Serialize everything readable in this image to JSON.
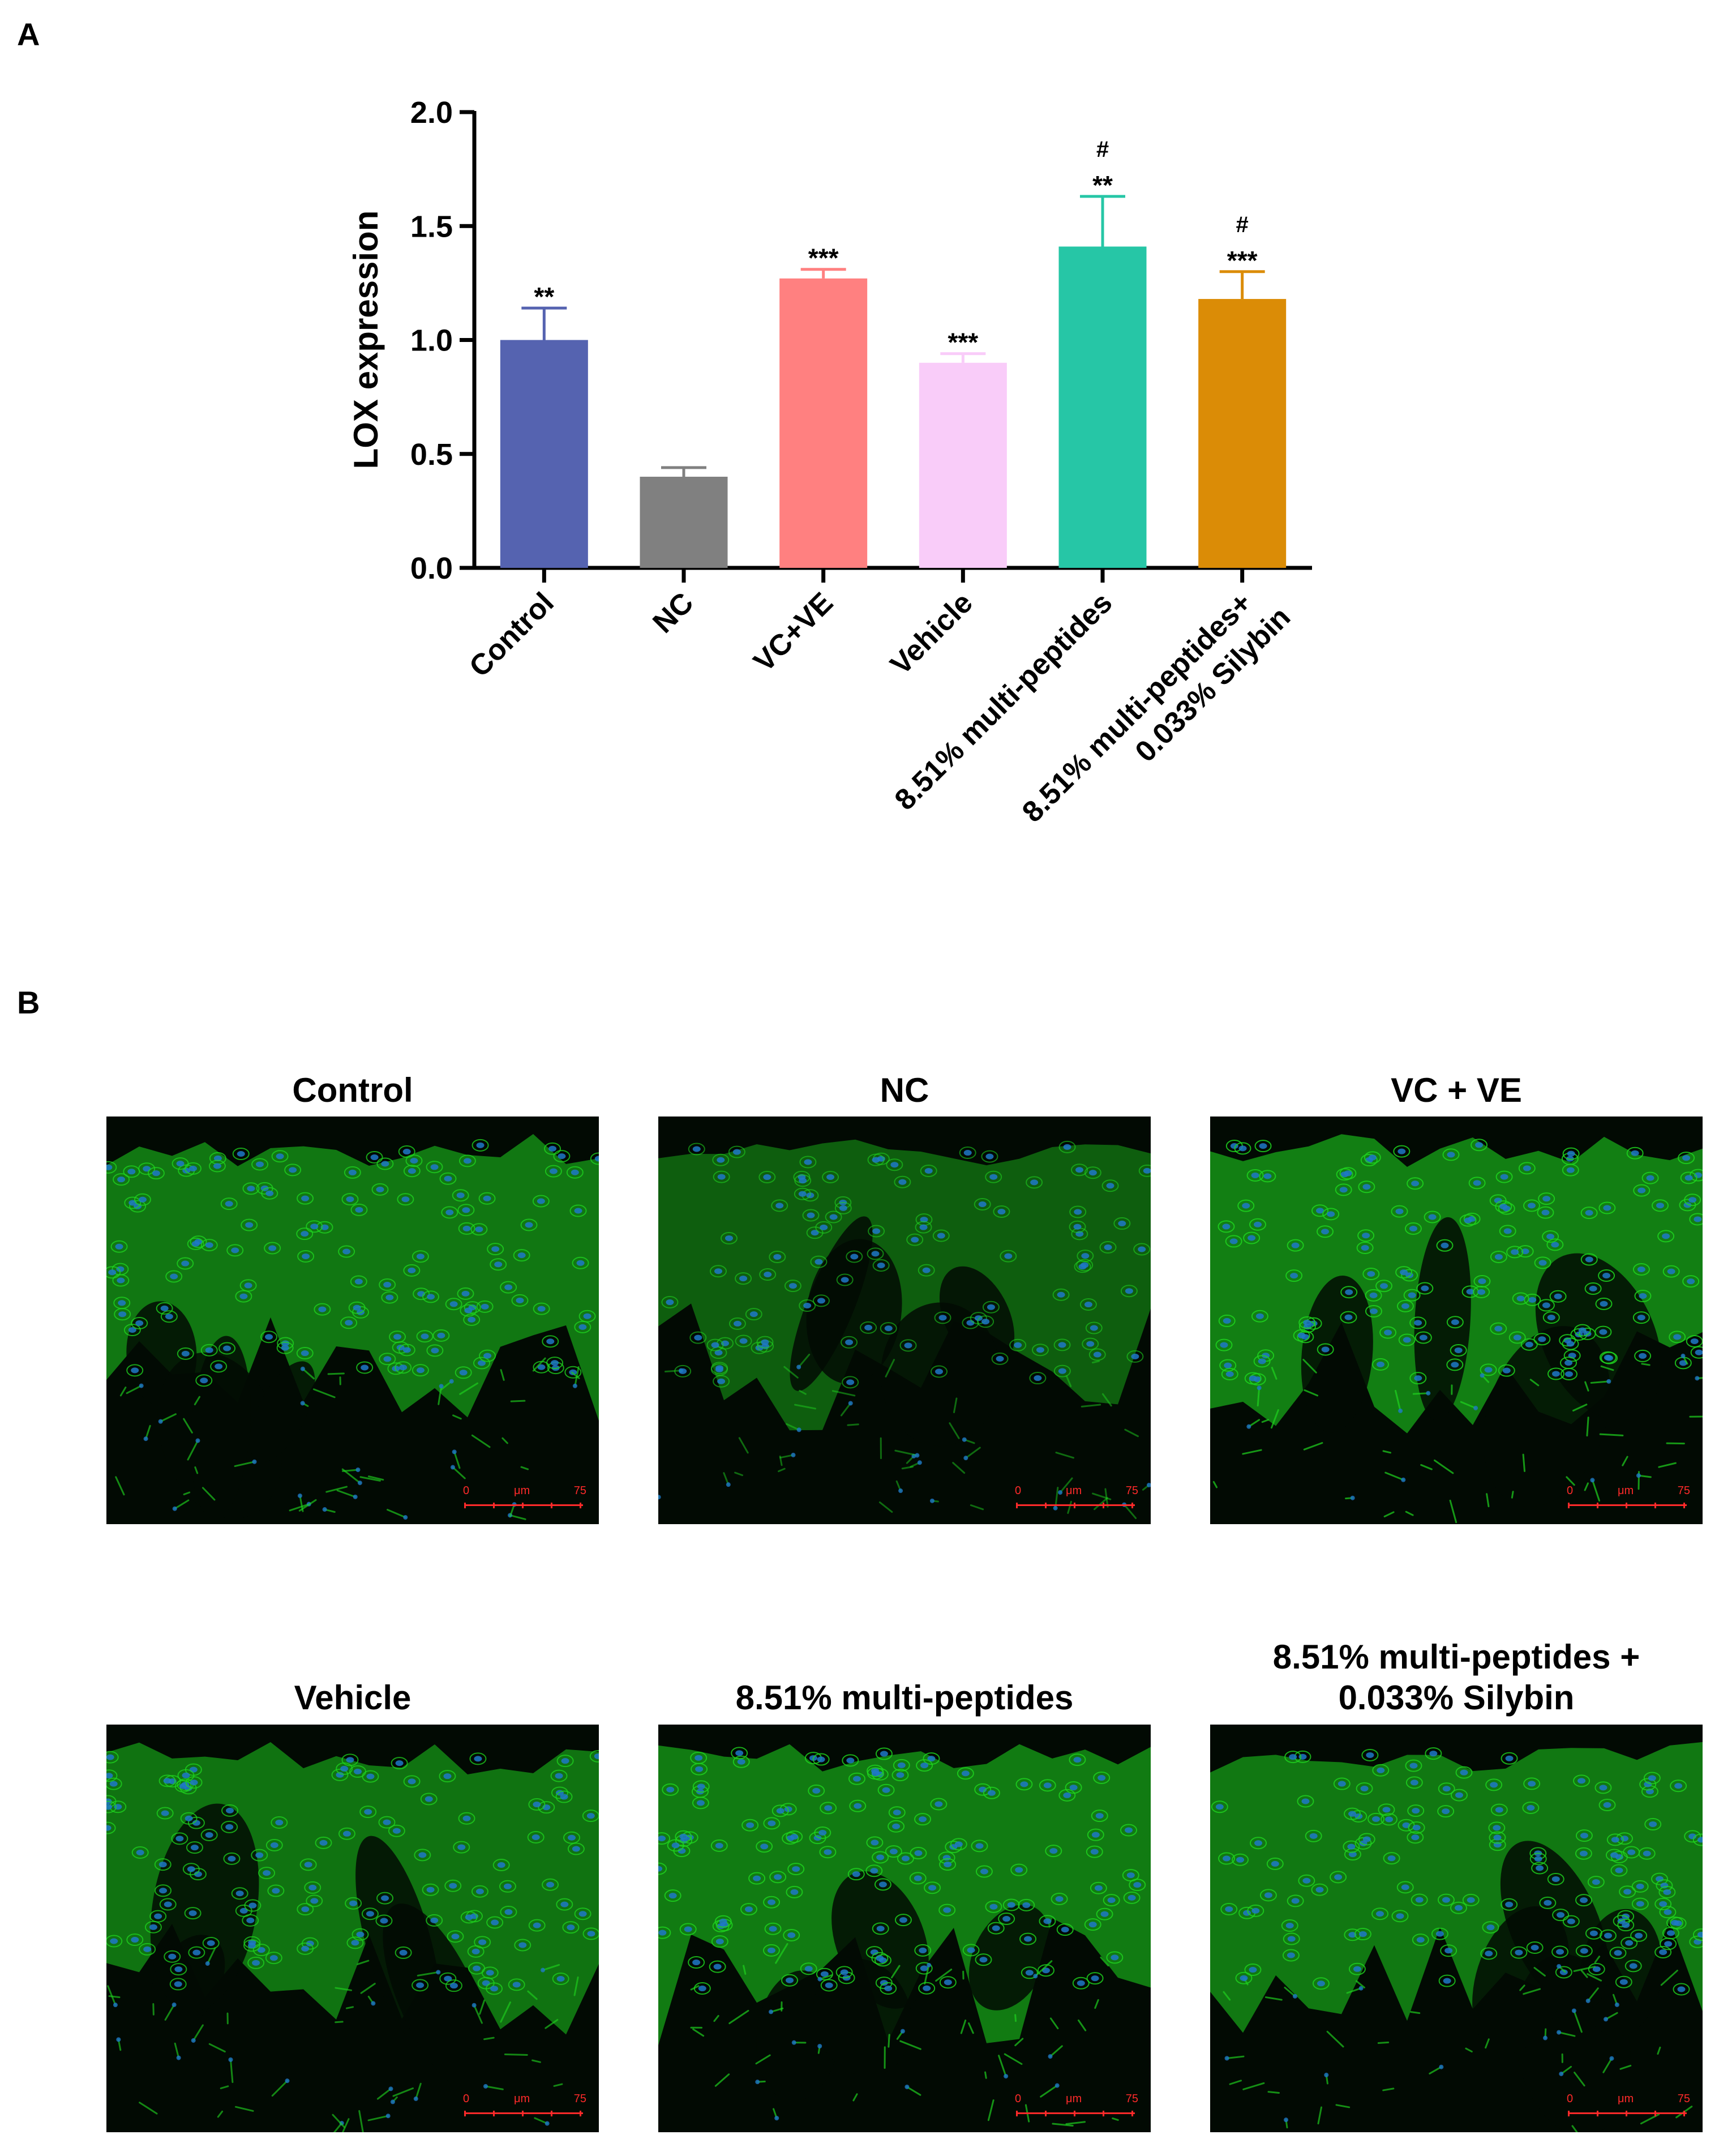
{
  "panel_a": {
    "letter": "A"
  },
  "panel_b": {
    "letter": "B"
  },
  "chart_data": {
    "type": "bar",
    "title": "",
    "xlabel": "",
    "ylabel": "LOX expression",
    "ylim": [
      0,
      2.0
    ],
    "yticks": [
      "0.0",
      "0.5",
      "1.0",
      "1.5",
      "2.0"
    ],
    "grid": false,
    "legend": "none",
    "categories": [
      "Control",
      "NC",
      "VC+VE",
      "Vehicle",
      "8.51% multi-peptides",
      "8.51% multi-peptides+ 0.033% Silybin"
    ],
    "category_lines": [
      [
        "Control"
      ],
      [
        "NC"
      ],
      [
        "VC+VE"
      ],
      [
        "Vehicle"
      ],
      [
        "8.51% multi-peptides"
      ],
      [
        "8.51% multi-peptides+",
        "0.033% Silybin"
      ]
    ],
    "values": [
      1.0,
      0.4,
      1.27,
      0.9,
      1.41,
      1.18
    ],
    "errors": [
      0.14,
      0.04,
      0.04,
      0.04,
      0.22,
      0.12
    ],
    "significance": [
      [
        "**"
      ],
      [],
      [
        "***"
      ],
      [
        "***"
      ],
      [
        "#",
        "**"
      ],
      [
        "#",
        "***"
      ]
    ],
    "colors": [
      "#5563b0",
      "#808080",
      "#ff8080",
      "#f9ccf9",
      "#26c6a6",
      "#db8c06"
    ]
  },
  "micrographs": [
    {
      "title_lines": [
        "Control"
      ],
      "intensity": 0.85,
      "scale": {
        "start": "0",
        "unit": "μm",
        "end": "75"
      }
    },
    {
      "title_lines": [
        "NC"
      ],
      "intensity": 0.45,
      "scale": {
        "start": "0",
        "unit": "μm",
        "end": "75"
      }
    },
    {
      "title_lines": [
        "VC + VE"
      ],
      "intensity": 1.0,
      "scale": {
        "start": "0",
        "unit": "μm",
        "end": "75"
      }
    },
    {
      "title_lines": [
        "Vehicle"
      ],
      "intensity": 0.8,
      "scale": {
        "start": "0",
        "unit": "μm",
        "end": "75"
      }
    },
    {
      "title_lines": [
        "8.51% multi-peptides"
      ],
      "intensity": 0.95,
      "scale": {
        "start": "0",
        "unit": "μm",
        "end": "75"
      }
    },
    {
      "title_lines": [
        "8.51% multi-peptides +",
        "0.033% Silybin"
      ],
      "intensity": 0.9,
      "scale": {
        "start": "0",
        "unit": "μm",
        "end": "75"
      }
    }
  ],
  "colors": {
    "stain": "#1fd41f",
    "nucleus": "#1e78c8",
    "scale_bar": "#ff2a2a"
  }
}
